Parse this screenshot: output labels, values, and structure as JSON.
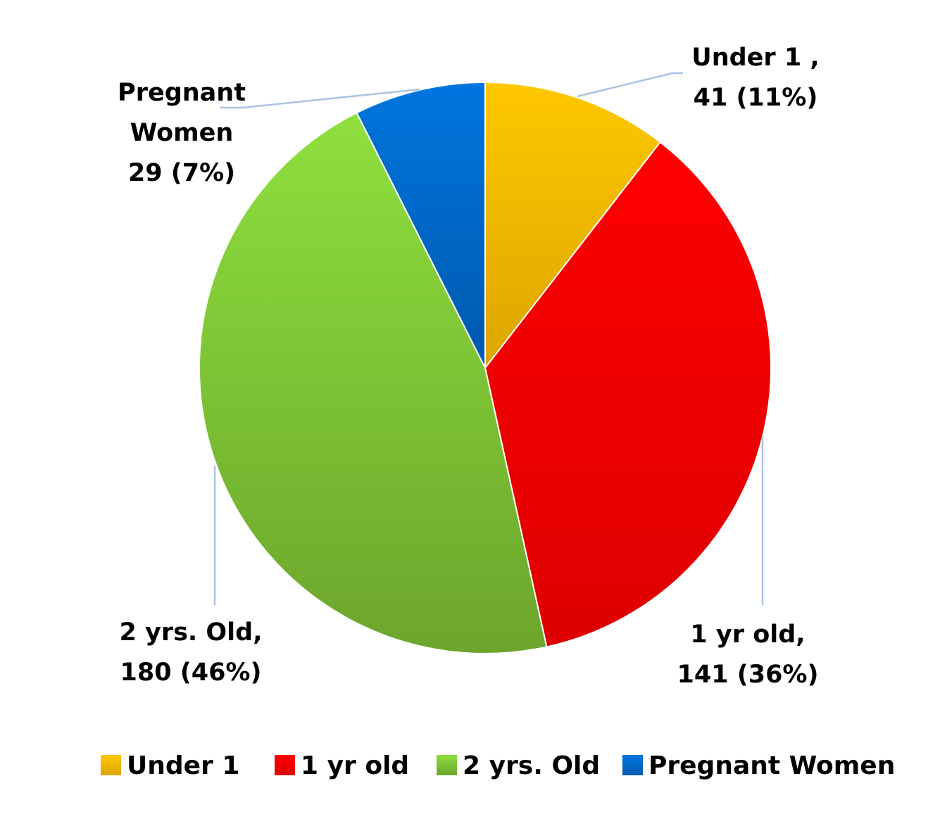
{
  "chart_data": {
    "type": "pie",
    "start_angle_deg": 0,
    "direction": "clockwise",
    "slices": [
      {
        "name": "Under 1",
        "value": 41,
        "percent": "11%",
        "label_lines": [
          "Under 1 ,",
          "41 (11%)"
        ],
        "color": "#FFC800",
        "color_dark": "#DDA500"
      },
      {
        "name": "1 yr old",
        "value": 141,
        "percent": "36%",
        "label_lines": [
          "1 yr old,",
          "141 (36%)"
        ],
        "color": "#FF0000",
        "color_dark": "#DD0000"
      },
      {
        "name": "2 yrs. Old",
        "value": 180,
        "percent": "46%",
        "label_lines": [
          "2 yrs. Old,",
          "180 (46%)"
        ],
        "color": "#8EE03E",
        "color_dark": "#6CA52C"
      },
      {
        "name": "Pregnant Women",
        "value": 29,
        "percent": "7%",
        "label_lines": [
          "Pregnant",
          "Women",
          "29 (7%)"
        ],
        "color": "#0075DF",
        "color_dark": "#0059AD"
      }
    ],
    "legend": {
      "placement": "bottom",
      "entries": [
        "Under 1",
        "1 yr old",
        "2 yrs. Old",
        "Pregnant Women"
      ]
    },
    "leader_line_color": "#A9C3E2"
  }
}
